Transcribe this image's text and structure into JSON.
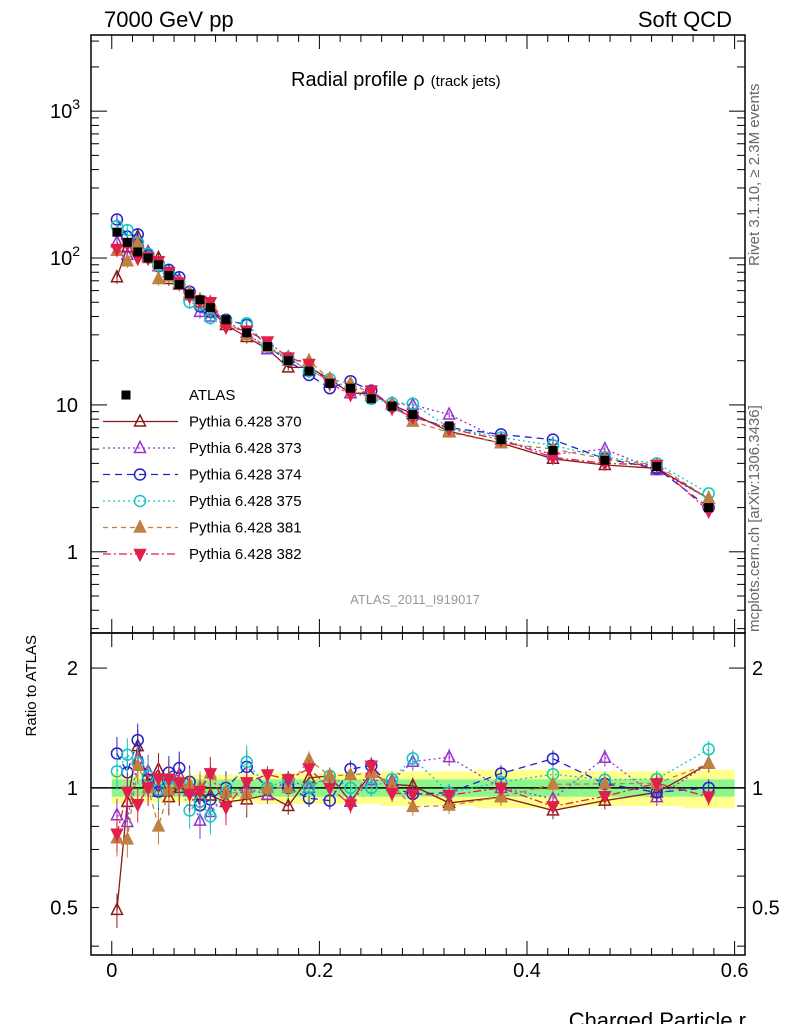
{
  "header": {
    "left": "7000 GeV pp",
    "right": "Soft QCD"
  },
  "side": {
    "rivet": "Rivet 3.1.10, ≥ 2.3M events",
    "mcplots": "mcplots.cern.ch [arXiv:1306.3436]"
  },
  "analysis_label": "ATLAS_2011_I919017",
  "chart_data": {
    "type": "scatter",
    "title": "Radial profile ρ",
    "title_suffix": "(track jets)",
    "xlabel": "Charged Particle r",
    "ylabel_main": "",
    "ylabel_ratio": "Ratio to ATLAS",
    "xlim": [
      -0.02,
      0.61
    ],
    "ylim": [
      0.28,
      3300
    ],
    "yscale": "log",
    "ratio_ylim": [
      0.38,
      2.45
    ],
    "ratio_yscale": "log",
    "x_ticks": [
      "0",
      "0.2",
      "0.4",
      "0.6"
    ],
    "y_ticks_main": [
      "1",
      "10",
      "10^2",
      "10^3"
    ],
    "y_ticks_ratio": [
      "0.5",
      "1",
      "2"
    ],
    "legend_position": "middle-left",
    "x": [
      0.005,
      0.015,
      0.025,
      0.035,
      0.045,
      0.055,
      0.065,
      0.075,
      0.085,
      0.095,
      0.11,
      0.13,
      0.15,
      0.17,
      0.19,
      0.21,
      0.23,
      0.25,
      0.27,
      0.29,
      0.325,
      0.375,
      0.425,
      0.475,
      0.525,
      0.575
    ],
    "data": {
      "name": "ATLAS",
      "values": [
        150,
        128,
        110,
        100,
        90,
        76,
        66,
        57,
        52,
        46,
        38,
        31,
        25,
        20,
        17,
        14,
        13,
        11,
        9.8,
        8.6,
        7.2,
        5.8,
        4.9,
        4.2,
        3.8,
        2.0
      ],
      "band_inner": [
        0.05,
        0.05,
        0.05,
        0.05,
        0.05,
        0.05,
        0.05,
        0.05,
        0.05,
        0.05,
        0.05,
        0.05,
        0.05,
        0.05,
        0.05,
        0.05,
        0.05,
        0.05,
        0.05,
        0.05,
        0.05,
        0.05,
        0.05,
        0.05,
        0.05,
        0.05
      ],
      "band_outer": [
        0.09,
        0.08,
        0.08,
        0.08,
        0.08,
        0.08,
        0.08,
        0.08,
        0.08,
        0.08,
        0.08,
        0.08,
        0.09,
        0.09,
        0.09,
        0.09,
        0.09,
        0.09,
        0.1,
        0.1,
        0.1,
        0.11,
        0.11,
        0.1,
        0.1,
        0.11
      ]
    },
    "series": [
      {
        "name": "Pythia 6.428 370",
        "color": "#8B1A1A",
        "marker": "triangle-up-open",
        "dash": "none",
        "values": [
          74,
          118,
          140,
          103,
          100,
          72,
          66,
          56,
          50,
          44,
          35,
          29,
          24,
          18,
          18,
          15,
          12,
          12,
          10,
          8.7,
          6.6,
          5.5,
          4.3,
          3.9,
          3.7,
          2.3
        ]
      },
      {
        "name": "Pythia 6.428 373",
        "color": "#9932CC",
        "marker": "triangle-up-open",
        "dash": "2,3",
        "values": [
          128,
          105,
          130,
          110,
          88,
          80,
          71,
          56,
          43,
          40,
          37,
          31,
          24,
          21,
          17,
          15,
          12,
          11.5,
          10.2,
          10,
          8.6,
          5.8,
          4.6,
          5.0,
          3.6,
          2.3
        ]
      },
      {
        "name": "Pythia 6.428 374",
        "color": "#2222CC",
        "marker": "circle-open",
        "dash": "7,5",
        "values": [
          183,
          140,
          145,
          105,
          88,
          83,
          74,
          59,
          47,
          43,
          38,
          35,
          25,
          20,
          16,
          13,
          14.5,
          12.5,
          9.8,
          8.3,
          7.0,
          6.3,
          5.8,
          4.3,
          3.7,
          2.0
        ]
      },
      {
        "name": "Pythia 6.428 375",
        "color": "#10C8C0",
        "marker": "circle-open",
        "dash": "2,3",
        "values": [
          165,
          155,
          127,
          107,
          89,
          80,
          68,
          50,
          48,
          39,
          37,
          36,
          25,
          21,
          17,
          15,
          13,
          11,
          10.3,
          10.2,
          7.0,
          6.0,
          5.3,
          4.4,
          4.0,
          2.5
        ]
      },
      {
        "name": "Pythia 6.428 381",
        "color": "#C08040",
        "marker": "triangle-up-filled",
        "dash": "5,4",
        "values": [
          112,
          95,
          125,
          100,
          72,
          75,
          68,
          58,
          52,
          50,
          37,
          30,
          25,
          20,
          20,
          15,
          14,
          12,
          10,
          7.7,
          6.5,
          5.5,
          5.0,
          4.3,
          3.9,
          2.3
        ]
      },
      {
        "name": "Pythia 6.428 382",
        "color": "#E0204A",
        "marker": "triangle-down-filled",
        "dash": "8,3,2,3",
        "values": [
          115,
          125,
          100,
          100,
          95,
          80,
          68,
          55,
          51,
          50,
          34,
          32,
          27,
          21,
          19,
          14,
          11.8,
          12.5,
          9.5,
          8.3,
          6.9,
          5.8,
          4.4,
          4.0,
          3.9,
          1.9
        ]
      }
    ]
  }
}
